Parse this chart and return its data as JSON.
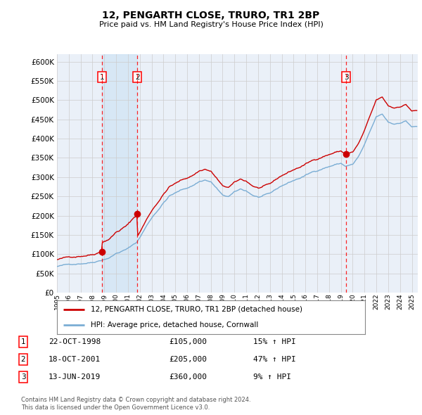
{
  "title": "12, PENGARTH CLOSE, TRURO, TR1 2BP",
  "subtitle": "Price paid vs. HM Land Registry's House Price Index (HPI)",
  "legend_line1": "12, PENGARTH CLOSE, TRURO, TR1 2BP (detached house)",
  "legend_line2": "HPI: Average price, detached house, Cornwall",
  "footer1": "Contains HM Land Registry data © Crown copyright and database right 2024.",
  "footer2": "This data is licensed under the Open Government Licence v3.0.",
  "sale_points": [
    {
      "num": 1,
      "date": "22-OCT-1998",
      "price": 105000,
      "pct": "15%",
      "year_x": 1998.79
    },
    {
      "num": 2,
      "date": "18-OCT-2001",
      "price": 205000,
      "pct": "47%",
      "year_x": 2001.79
    },
    {
      "num": 3,
      "date": "13-JUN-2019",
      "price": 360000,
      "pct": "9%",
      "year_x": 2019.45
    }
  ],
  "hpi_color": "#7aadd4",
  "sale_color": "#cc0000",
  "grid_color": "#cccccc",
  "background_color": "#ffffff",
  "plot_bg_color": "#eaf0f8",
  "span_color": "#d0e4f5",
  "ylim": [
    0,
    620000
  ],
  "xlim_start": 1995.0,
  "xlim_end": 2025.5,
  "yticks": [
    0,
    50000,
    100000,
    150000,
    200000,
    250000,
    300000,
    350000,
    400000,
    450000,
    500000,
    550000,
    600000
  ],
  "xticks": [
    1995,
    1996,
    1997,
    1998,
    1999,
    2000,
    2001,
    2002,
    2003,
    2004,
    2005,
    2006,
    2007,
    2008,
    2009,
    2010,
    2011,
    2012,
    2013,
    2014,
    2015,
    2016,
    2017,
    2018,
    2019,
    2020,
    2021,
    2022,
    2023,
    2024,
    2025
  ]
}
